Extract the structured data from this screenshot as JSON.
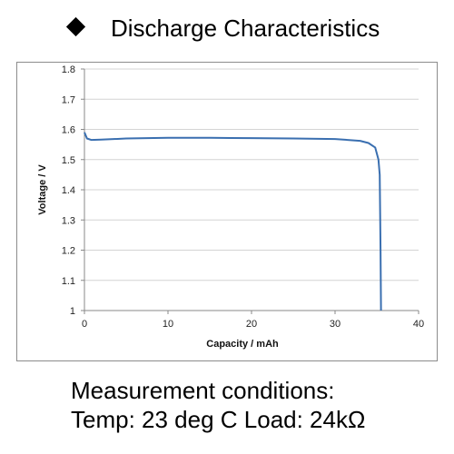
{
  "header": {
    "bullet_icon": "diamond-icon",
    "title": "Discharge Characteristics"
  },
  "chart_data": {
    "type": "line",
    "title": "",
    "xlabel": "Capacity  /  mAh",
    "ylabel": "Voltage  /  V",
    "xlim": [
      0,
      40
    ],
    "ylim": [
      1.0,
      1.8
    ],
    "xticks": [
      0,
      10,
      20,
      30,
      40
    ],
    "xtick_labels": [
      "0",
      "10",
      "20",
      "30",
      "40"
    ],
    "yticks": [
      1.0,
      1.1,
      1.2,
      1.3,
      1.4,
      1.5,
      1.6,
      1.7,
      1.8
    ],
    "ytick_labels": [
      "1",
      "1.1",
      "1.2",
      "1.3",
      "1.4",
      "1.5",
      "1.6",
      "1.7",
      "1.8"
    ],
    "grid": "horizontal",
    "legend": "none",
    "series": [
      {
        "color": "#3a6fb0",
        "x": [
          0,
          0.3,
          0.8,
          2,
          5,
          10,
          15,
          20,
          25,
          30,
          33,
          34,
          34.8,
          35.2,
          35.35,
          35.45,
          35.5
        ],
        "y": [
          1.59,
          1.57,
          1.565,
          1.566,
          1.57,
          1.572,
          1.572,
          1.571,
          1.57,
          1.568,
          1.562,
          1.555,
          1.54,
          1.5,
          1.45,
          1.2,
          1.0
        ]
      }
    ]
  },
  "conditions": {
    "line1": "Measurement conditions:",
    "line2": "Temp: 23 deg C   Load: 24kΩ"
  }
}
